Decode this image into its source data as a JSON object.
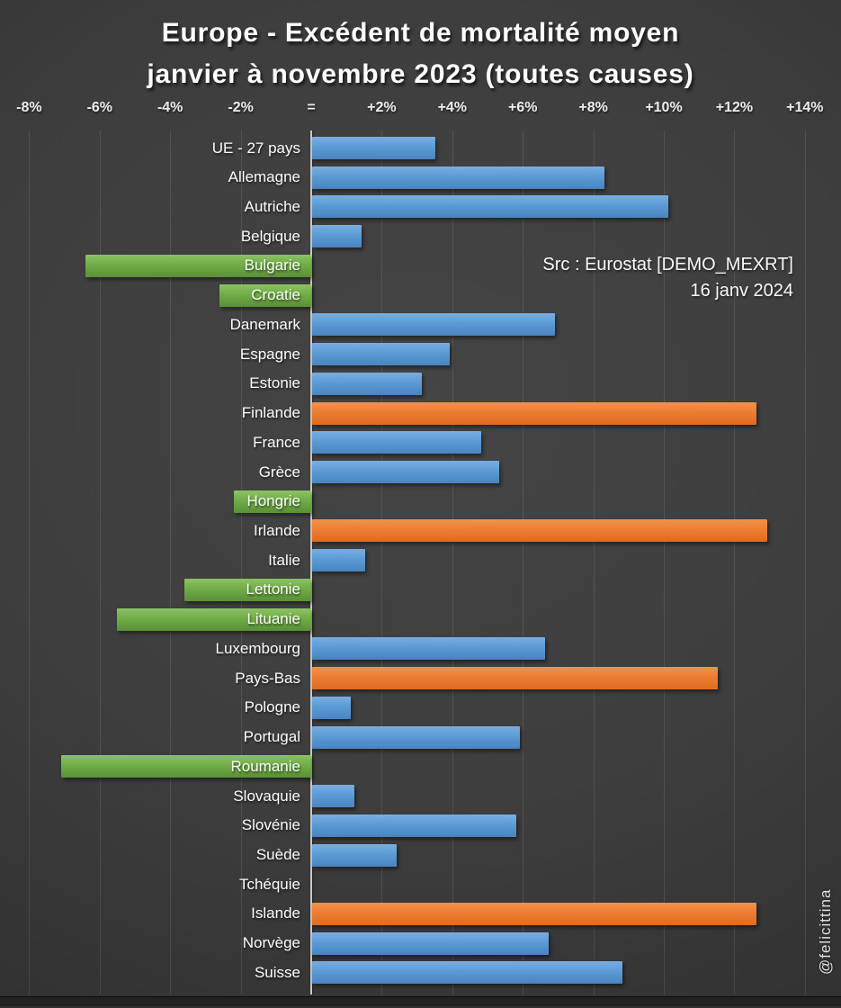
{
  "title": {
    "line1": "Europe - Excédent de mortalité moyen",
    "line2": "janvier à novembre 2023 (toutes causes)"
  },
  "source": {
    "line1": "Src : Eurostat [DEMO_MEXRT]",
    "line2": "16 janv 2024"
  },
  "watermark": "@felicittina",
  "colors": {
    "positive_blue": "#5B9BD5",
    "negative_green": "#70AD47",
    "highlight_orange": "#ED7D31",
    "background": "#3A3A3A",
    "gridline": "#5A5A5A",
    "axis_line": "#C9C9C9",
    "text": "#FFFFFF"
  },
  "chart_data": {
    "type": "bar",
    "orientation": "horizontal",
    "title": "Europe - Excédent de mortalité moyen janvier à novembre 2023 (toutes causes)",
    "unit": "%",
    "xlim": [
      -8,
      14
    ],
    "grid": true,
    "legend_position": "none",
    "tick_values": [
      -8,
      -6,
      -4,
      -2,
      0,
      2,
      4,
      6,
      8,
      10,
      12,
      14
    ],
    "tick_labels": [
      "-8%",
      "-6%",
      "-4%",
      "-2%",
      "=",
      "+2%",
      "+4%",
      "+6%",
      "+8%",
      "+10%",
      "+12%",
      "+14%"
    ],
    "categories": [
      "UE - 27 pays",
      "Allemagne",
      "Autriche",
      "Belgique",
      "Bulgarie",
      "Croatie",
      "Danemark",
      "Espagne",
      "Estonie",
      "Finlande",
      "France",
      "Grèce",
      "Hongrie",
      "Irlande",
      "Italie",
      "Lettonie",
      "Lituanie",
      "Luxembourg",
      "Pays-Bas",
      "Pologne",
      "Portugal",
      "Roumanie",
      "Slovaquie",
      "Slovénie",
      "Suède",
      "Tchéquie",
      "Islande",
      "Norvège",
      "Suisse"
    ],
    "values": [
      3.5,
      8.3,
      10.1,
      1.4,
      -6.4,
      -2.6,
      6.9,
      3.9,
      3.1,
      12.6,
      4.8,
      5.3,
      -2.2,
      12.9,
      1.5,
      -3.6,
      -5.5,
      6.6,
      11.5,
      1.1,
      5.9,
      -7.1,
      1.2,
      5.8,
      2.4,
      0,
      12.6,
      6.7,
      8.8
    ],
    "bar_color_roles": [
      "blue",
      "blue",
      "blue",
      "blue",
      "green",
      "green",
      "blue",
      "blue",
      "blue",
      "orange",
      "blue",
      "blue",
      "green",
      "orange",
      "blue",
      "green",
      "green",
      "blue",
      "orange",
      "blue",
      "blue",
      "green",
      "blue",
      "blue",
      "blue",
      "blue",
      "orange",
      "blue",
      "blue"
    ]
  }
}
